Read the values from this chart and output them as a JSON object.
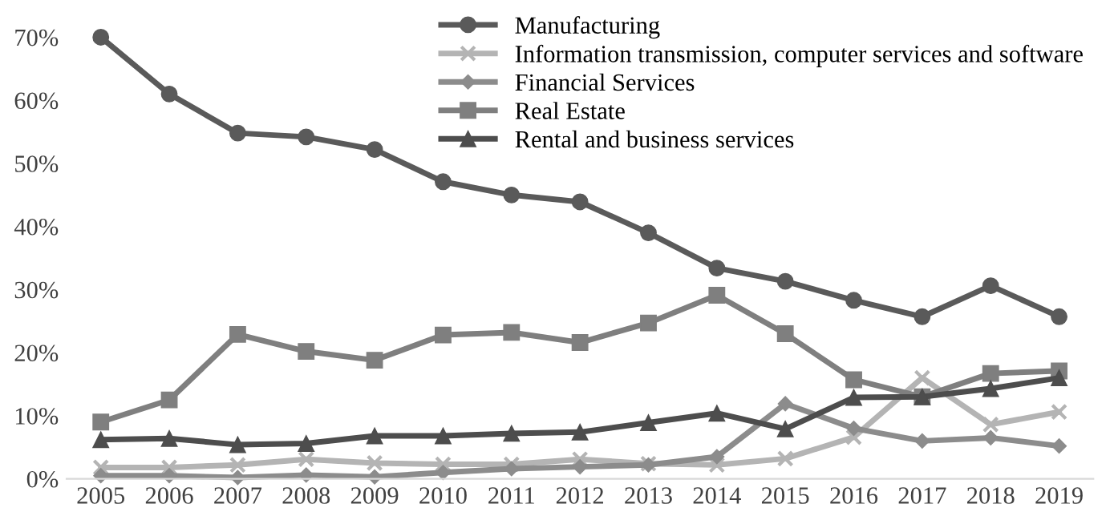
{
  "chart_data": {
    "type": "line",
    "categories": [
      "2005",
      "2006",
      "2007",
      "2008",
      "2009",
      "2010",
      "2011",
      "2012",
      "2013",
      "2014",
      "2015",
      "2016",
      "2017",
      "2018",
      "2019"
    ],
    "ylim": [
      0,
      70
    ],
    "yticks": [
      {
        "value": 0,
        "label": "0%"
      },
      {
        "value": 10,
        "label": "10%"
      },
      {
        "value": 20,
        "label": "20%"
      },
      {
        "value": 30,
        "label": "30%"
      },
      {
        "value": 40,
        "label": "40%"
      },
      {
        "value": 50,
        "label": "50%"
      },
      {
        "value": 60,
        "label": "60%"
      },
      {
        "value": 70,
        "label": "70%"
      }
    ],
    "grid": false,
    "legend": "top right",
    "line_style": "solid",
    "series": [
      {
        "name": "Manufacturing",
        "color": "#5a5a5a",
        "marker": "circle",
        "values": [
          70,
          61,
          54.8,
          54.2,
          52.2,
          47.1,
          45,
          43.9,
          39,
          33.4,
          31.3,
          28.3,
          25.7,
          30.6,
          25.7
        ]
      },
      {
        "name": "Information transmission, computer services and software",
        "color": "#b4b4b4",
        "marker": "cross",
        "values": [
          1.8,
          1.8,
          2.2,
          3.1,
          2.5,
          2.3,
          2.3,
          3.1,
          2.4,
          2.2,
          3.2,
          6.6,
          16,
          8.6,
          10.6
        ]
      },
      {
        "name": "Financial Services",
        "color": "#8c8c8c",
        "marker": "diamond",
        "values": [
          0.5,
          0.5,
          0.2,
          0.6,
          0.3,
          1.0,
          1.6,
          1.9,
          2.2,
          3.5,
          11.9,
          8,
          6,
          6.5,
          5.2
        ]
      },
      {
        "name": "Real Estate",
        "color": "#7f7f7f",
        "marker": "square",
        "values": [
          9,
          12.5,
          22.9,
          20.2,
          18.8,
          22.8,
          23.2,
          21.6,
          24.7,
          29.1,
          23,
          15.7,
          13,
          16.7,
          17.1
        ]
      },
      {
        "name": "Rental and business services",
        "color": "#4d4d4d",
        "marker": "triangle",
        "values": [
          6.2,
          6.4,
          5.4,
          5.6,
          6.8,
          6.8,
          7.2,
          7.4,
          8.9,
          10.4,
          7.9,
          12.9,
          13,
          14.3,
          16
        ]
      }
    ]
  }
}
